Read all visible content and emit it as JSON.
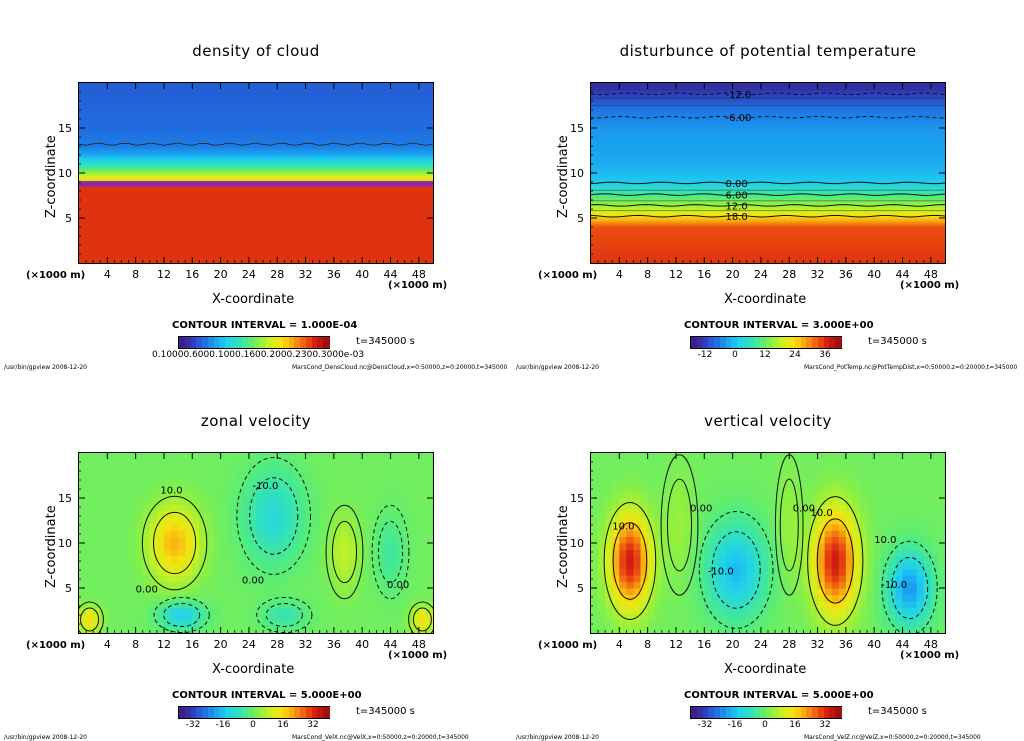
{
  "colors": {
    "rainbow": [
      "#3b1e8c",
      "#2d3fbf",
      "#1f6fe0",
      "#1aa0f0",
      "#20d0f0",
      "#30e0c0",
      "#50ec80",
      "#90f040",
      "#d0f020",
      "#f8e010",
      "#f8a810",
      "#f06010",
      "#d82010",
      "#a01010"
    ]
  },
  "panels": [
    {
      "id": "cloud",
      "title": "density of cloud",
      "xlabel": "X-coordinate",
      "ylabel": "Z-coordinate",
      "xunit": "(×1000 m)",
      "xunit2": "(×1000 m)",
      "contour_interval": "CONTOUR INTERVAL = 1.000E-04",
      "time": "t=345000 s",
      "cbar_labels": [
        "0.1000E-03",
        "0.2000E-03",
        "0.3000E-03"
      ],
      "cbar_text": "0.10000.6000.1000.1600.2000.2300.3000e-03",
      "footer_left": "/usr/bin/gpview   2008-12-20",
      "footer_right": "MarsCond_DensCloud.nc@DensCloud,x=0:50000,z=0:20000,t=345000",
      "contour_labels": []
    },
    {
      "id": "ptemp",
      "title": "disturbunce of potential temperature",
      "xlabel": "X-coordinate",
      "ylabel": "Z-coordinate",
      "xunit": "(×1000 m)",
      "xunit2": "(×1000 m)",
      "contour_interval": "CONTOUR INTERVAL = 3.000E+00",
      "time": "t=345000 s",
      "cbar_labels": [
        "-12",
        "0",
        "12",
        "24",
        "36"
      ],
      "footer_left": "/usr/bin/gpview   2008-12-20",
      "footer_right": "MarsCond_PotTemp.nc@PotTempDist,x=0:50000,z=0:20000,t=345000",
      "contour_labels": [
        "-12.0",
        "-6.00",
        "0.00",
        "6.00",
        "12.0",
        "18.0"
      ]
    },
    {
      "id": "u",
      "title": "zonal velocity",
      "xlabel": "X-coordinate",
      "ylabel": "Z-coordinate",
      "xunit": "(×1000 m)",
      "xunit2": "(×1000 m)",
      "contour_interval": "CONTOUR INTERVAL = 5.000E+00",
      "time": "t=345000 s",
      "cbar_labels": [
        "-32",
        "-16",
        "0",
        "16",
        "32"
      ],
      "footer_left": "/usr/bin/gpview   2008-12-20",
      "footer_right": "MarsCond_VelX.nc@VelX,x=0:50000,z=0:20000,t=345000",
      "contour_labels": [
        "10.0",
        "-10.0",
        "0.00",
        "0.00",
        "0.00"
      ]
    },
    {
      "id": "w",
      "title": "vertical velocity",
      "xlabel": "X-coordinate",
      "ylabel": "Z-coordinate",
      "xunit": "(×1000 m)",
      "xunit2": "(×1000 m)",
      "contour_interval": "CONTOUR INTERVAL = 5.000E+00",
      "time": "t=345000 s",
      "cbar_labels": [
        "-32",
        "-16",
        "0",
        "16",
        "32"
      ],
      "footer_left": "/usr/bin/gpview   2008-12-20",
      "footer_right": "MarsCond_VelZ.nc@VelZ,x=0:50000,z=0:20000,t=345000",
      "contour_labels": [
        "10.0",
        "0.00",
        "-10.0",
        "0.00",
        "10.0",
        "10.0",
        "-10.0"
      ]
    }
  ],
  "chart_data": [
    {
      "type": "heatmap",
      "title": "density of cloud",
      "xlabel": "X-coordinate",
      "ylabel": "Z-coordinate",
      "x_unit": "(×1000 m)",
      "xlim": [
        0,
        50
      ],
      "ylim": [
        0,
        20
      ],
      "x_ticks": [
        4,
        8,
        12,
        16,
        20,
        24,
        28,
        32,
        36,
        40,
        44,
        48
      ],
      "y_ticks": [
        5,
        10,
        15
      ],
      "contour_interval": 0.0001,
      "colorbar_labels": [
        "0.1000E-03",
        "0.2000E-03",
        "0.3000E-03"
      ],
      "profile_z": [
        0,
        8.5,
        9,
        10,
        11,
        12,
        13,
        15,
        20
      ],
      "profile_value": [
        null,
        0.00036,
        0.0003,
        0.00022,
        0.00015,
        0.0001,
        7e-05,
        6e-05,
        5e-05
      ]
    },
    {
      "type": "heatmap",
      "title": "disturbunce of potential temperature",
      "xlabel": "X-coordinate",
      "ylabel": "Z-coordinate",
      "x_unit": "(×1000 m)",
      "xlim": [
        0,
        50
      ],
      "ylim": [
        0,
        20
      ],
      "x_ticks": [
        4,
        8,
        12,
        16,
        20,
        24,
        28,
        32,
        36,
        40,
        44,
        48
      ],
      "y_ticks": [
        5,
        10,
        15
      ],
      "contour_interval": 3.0,
      "colorbar_range": [
        -18,
        42
      ],
      "colorbar_ticks": [
        -12,
        0,
        12,
        24,
        36
      ],
      "contour_values": [
        -12.0,
        -6.0,
        0.0,
        6.0,
        12.0,
        18.0
      ],
      "contour_z": [
        18.8,
        16.2,
        8.9,
        7.6,
        6.4,
        5.2
      ]
    },
    {
      "type": "heatmap",
      "title": "zonal velocity",
      "xlabel": "X-coordinate",
      "ylabel": "Z-coordinate",
      "x_unit": "(×1000 m)",
      "xlim": [
        0,
        50
      ],
      "ylim": [
        0,
        20
      ],
      "x_ticks": [
        4,
        8,
        12,
        16,
        20,
        24,
        28,
        32,
        36,
        40,
        44,
        48
      ],
      "y_ticks": [
        5,
        10,
        15
      ],
      "contour_interval": 5.0,
      "colorbar_range": [
        -40,
        40
      ],
      "colorbar_ticks": [
        -32,
        -16,
        0,
        16,
        32
      ],
      "features": [
        {
          "x": 13.5,
          "z": 10,
          "value": 20,
          "rx": 3.5,
          "rz": 4
        },
        {
          "x": 27.5,
          "z": 13,
          "value": -12,
          "rx": 4,
          "rz": 5
        },
        {
          "x": 37.5,
          "z": 9,
          "value": 8,
          "rx": 2,
          "rz": 4
        },
        {
          "x": 14.5,
          "z": 2,
          "value": -15,
          "rx": 3,
          "rz": 1.5
        },
        {
          "x": 1.5,
          "z": 1.5,
          "value": 15,
          "rx": 1.5,
          "rz": 1.5
        },
        {
          "x": 48.5,
          "z": 1.5,
          "value": 15,
          "rx": 1.5,
          "rz": 1.5
        },
        {
          "x": 29,
          "z": 2,
          "value": -8,
          "rx": 3,
          "rz": 1.5
        },
        {
          "x": 44,
          "z": 9,
          "value": -6,
          "rx": 2,
          "rz": 4
        }
      ]
    },
    {
      "type": "heatmap",
      "title": "vertical velocity",
      "xlabel": "X-coordinate",
      "ylabel": "Z-coordinate",
      "x_unit": "(×1000 m)",
      "xlim": [
        0,
        50
      ],
      "ylim": [
        0,
        20
      ],
      "x_ticks": [
        4,
        8,
        12,
        16,
        20,
        24,
        28,
        32,
        36,
        40,
        44,
        48
      ],
      "y_ticks": [
        5,
        10,
        15
      ],
      "contour_interval": 5.0,
      "colorbar_range": [
        -40,
        40
      ],
      "colorbar_ticks": [
        -32,
        -16,
        0,
        16,
        32
      ],
      "features": [
        {
          "x": 5.5,
          "z": 8,
          "value": 35,
          "rx": 2.8,
          "rz": 5
        },
        {
          "x": 34.5,
          "z": 8,
          "value": 35,
          "rx": 3,
          "rz": 5.5
        },
        {
          "x": 20.5,
          "z": 7,
          "value": -18,
          "rx": 4,
          "rz": 5
        },
        {
          "x": 45,
          "z": 5,
          "value": -22,
          "rx": 3,
          "rz": 4
        },
        {
          "x": 12.5,
          "z": 12,
          "value": 4,
          "rx": 2,
          "rz": 6
        },
        {
          "x": 28,
          "z": 12,
          "value": 4,
          "rx": 1.5,
          "rz": 6
        }
      ]
    }
  ]
}
